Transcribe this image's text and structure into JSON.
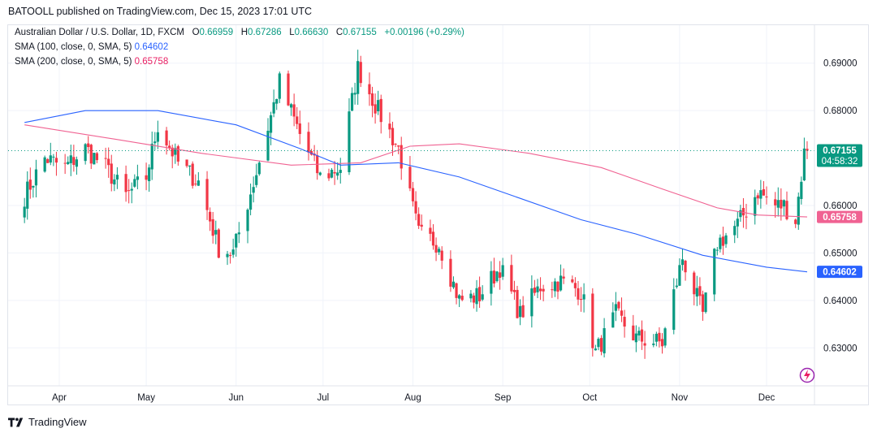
{
  "header": {
    "published": "BATOOLL published on TradingView.com, Dec 15, 2023 17:01 UTC"
  },
  "legend": {
    "symbol": "Australian Dollar / U.S. Dollar, 1D, FXCM",
    "o_label": "O",
    "o_value": "0.66959",
    "h_label": "H",
    "h_value": "0.67286",
    "l_label": "L",
    "l_value": "0.66630",
    "c_label": "C",
    "c_value": "0.67155",
    "change": "+0.00196 (+0.29%)",
    "sma100_label": "SMA (100, close, 0, SMA, 5)",
    "sma100_value": "0.64602",
    "sma200_label": "SMA (200, close, 0, SMA, 5)",
    "sma200_value": "0.65758"
  },
  "price_badge": {
    "price": "0.67155",
    "countdown": "04:58:32"
  },
  "sma100_badge": "0.64602",
  "sma200_badge": "0.65758",
  "footer": {
    "brand": "TradingView"
  },
  "colors": {
    "up": "#089981",
    "down": "#f23645",
    "sma100": "#2962ff",
    "sma200": "#f06292",
    "grid": "#f0f3fa"
  },
  "chart_data": {
    "type": "candlestick",
    "ylim": [
      0.622,
      0.698
    ],
    "y_ticks": [
      "0.69000",
      "0.68000",
      "0.66000",
      "0.65000",
      "0.64000",
      "0.63000"
    ],
    "x_ticks": [
      "Apr",
      "May",
      "Jun",
      "Jul",
      "Aug",
      "Sep",
      "Oct",
      "Nov",
      "Dec"
    ],
    "last_close": 0.67155,
    "keypoints": [
      {
        "date": "Mar 20",
        "close": 0.662
      },
      {
        "date": "Mar 27",
        "close": 0.67
      },
      {
        "date": "Apr 3",
        "close": 0.668
      },
      {
        "date": "Apr 10",
        "close": 0.672
      },
      {
        "date": "Apr 17",
        "close": 0.668
      },
      {
        "date": "Apr 24",
        "close": 0.662
      },
      {
        "date": "May 1",
        "close": 0.666
      },
      {
        "date": "May 5",
        "close": 0.677
      },
      {
        "date": "May 12",
        "close": 0.669
      },
      {
        "date": "May 19",
        "close": 0.665
      },
      {
        "date": "May 26",
        "close": 0.651
      },
      {
        "date": "May 31",
        "close": 0.65
      },
      {
        "date": "Jun 8",
        "close": 0.667
      },
      {
        "date": "Jun 16",
        "close": 0.686
      },
      {
        "date": "Jun 23",
        "close": 0.675
      },
      {
        "date": "Jun 30",
        "close": 0.666
      },
      {
        "date": "Jul 7",
        "close": 0.668
      },
      {
        "date": "Jul 13",
        "close": 0.689
      },
      {
        "date": "Jul 20",
        "close": 0.68
      },
      {
        "date": "Jul 27",
        "close": 0.672
      },
      {
        "date": "Aug 3",
        "close": 0.654
      },
      {
        "date": "Aug 10",
        "close": 0.652
      },
      {
        "date": "Aug 17",
        "close": 0.64
      },
      {
        "date": "Aug 24",
        "close": 0.641
      },
      {
        "date": "Aug 31",
        "close": 0.647
      },
      {
        "date": "Sep 7",
        "close": 0.637
      },
      {
        "date": "Sep 14",
        "close": 0.643
      },
      {
        "date": "Sep 21",
        "close": 0.644
      },
      {
        "date": "Sep 28",
        "close": 0.642
      },
      {
        "date": "Oct 3",
        "close": 0.629
      },
      {
        "date": "Oct 10",
        "close": 0.637
      },
      {
        "date": "Oct 17",
        "close": 0.632
      },
      {
        "date": "Oct 26",
        "close": 0.631
      },
      {
        "date": "Nov 2",
        "close": 0.649
      },
      {
        "date": "Nov 9",
        "close": 0.637
      },
      {
        "date": "Nov 14",
        "close": 0.652
      },
      {
        "date": "Nov 21",
        "close": 0.656
      },
      {
        "date": "Nov 28",
        "close": 0.663
      },
      {
        "date": "Dec 4",
        "close": 0.66
      },
      {
        "date": "Dec 7",
        "close": 0.66
      },
      {
        "date": "Dec 11",
        "close": 0.657
      },
      {
        "date": "Dec 14",
        "close": 0.671
      },
      {
        "date": "Dec 15",
        "close": 0.67155
      }
    ],
    "sma100_points": [
      {
        "date": "Mar 20",
        "value": 0.6775
      },
      {
        "date": "Apr 10",
        "value": 0.68
      },
      {
        "date": "May 5",
        "value": 0.68
      },
      {
        "date": "Jun 1",
        "value": 0.677
      },
      {
        "date": "Jun 23",
        "value": 0.672
      },
      {
        "date": "Jul 7",
        "value": 0.6685
      },
      {
        "date": "Jul 27",
        "value": 0.669
      },
      {
        "date": "Aug 17",
        "value": 0.666
      },
      {
        "date": "Sep 7",
        "value": 0.6615
      },
      {
        "date": "Sep 28",
        "value": 0.657
      },
      {
        "date": "Oct 17",
        "value": 0.654
      },
      {
        "date": "Nov 9",
        "value": 0.6495
      },
      {
        "date": "Dec 1",
        "value": 0.647
      },
      {
        "date": "Dec 15",
        "value": 0.64602
      }
    ],
    "sma200_points": [
      {
        "date": "Mar 20",
        "value": 0.677
      },
      {
        "date": "Apr 20",
        "value": 0.674
      },
      {
        "date": "May 20",
        "value": 0.671
      },
      {
        "date": "Jun 20",
        "value": 0.6685
      },
      {
        "date": "Jul 14",
        "value": 0.669
      },
      {
        "date": "Jul 31",
        "value": 0.6725
      },
      {
        "date": "Aug 17",
        "value": 0.673
      },
      {
        "date": "Sep 10",
        "value": 0.671
      },
      {
        "date": "Oct 5",
        "value": 0.668
      },
      {
        "date": "Oct 26",
        "value": 0.6635
      },
      {
        "date": "Nov 14",
        "value": 0.6595
      },
      {
        "date": "Nov 28",
        "value": 0.658
      },
      {
        "date": "Dec 15",
        "value": 0.65758
      }
    ]
  }
}
